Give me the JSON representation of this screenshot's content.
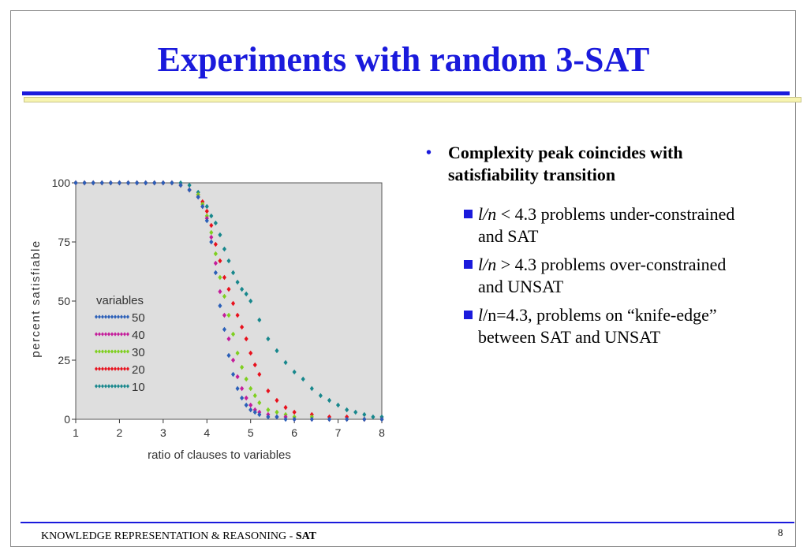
{
  "slide": {
    "title": "Experiments with random 3-SAT",
    "bullet_main": "Complexity peak coincides with satisfiability transition",
    "sub_bullets": [
      {
        "italic": "l/n",
        "rest": " < 4.3 problems under-constrained and SAT"
      },
      {
        "italic": "l/n",
        "rest": " > 4.3 problems over-constrained and UNSAT"
      },
      {
        "italic": "l",
        "rest": "/n=4.3, problems on “knife-edge” between SAT and UNSAT"
      }
    ],
    "footer_text": "KNOWLEDGE REPRESENTATION & REASONING - ",
    "footer_bold": "SAT",
    "page_number": "8"
  },
  "chart_data": {
    "type": "scatter",
    "xlabel": "ratio of clauses to variables",
    "ylabel": "percent satisfiable",
    "xlim": [
      1,
      8
    ],
    "ylim": [
      0,
      100
    ],
    "x_ticks": [
      "1",
      "2",
      "3",
      "4",
      "5",
      "6",
      "7",
      "8"
    ],
    "y_ticks": [
      "0",
      "25",
      "50",
      "75",
      "100"
    ],
    "legend_title": "variables",
    "legend_position": "left-center",
    "background": "#dedede",
    "series": [
      {
        "name": "50",
        "color": "#2a5fb8",
        "x": [
          1.0,
          1.2,
          1.4,
          1.6,
          1.8,
          2.0,
          2.2,
          2.4,
          2.6,
          2.8,
          3.0,
          3.2,
          3.4,
          3.6,
          3.8,
          3.9,
          4.0,
          4.1,
          4.2,
          4.3,
          4.4,
          4.5,
          4.6,
          4.7,
          4.8,
          4.9,
          5.0,
          5.1,
          5.2,
          5.4,
          5.6,
          5.8,
          6.0,
          6.4,
          6.8,
          7.2,
          7.6,
          8.0
        ],
        "y": [
          100,
          100,
          100,
          100,
          100,
          100,
          100,
          100,
          100,
          100,
          100,
          100,
          99,
          97,
          94,
          90,
          84,
          75,
          62,
          48,
          38,
          27,
          19,
          13,
          9,
          6,
          4,
          3,
          2,
          1,
          1,
          0,
          0,
          0,
          0,
          0,
          0,
          0
        ]
      },
      {
        "name": "40",
        "color": "#c41c9a",
        "x": [
          1.0,
          1.2,
          1.4,
          1.6,
          1.8,
          2.0,
          2.2,
          2.4,
          2.6,
          2.8,
          3.0,
          3.2,
          3.4,
          3.6,
          3.8,
          3.9,
          4.0,
          4.1,
          4.2,
          4.3,
          4.4,
          4.5,
          4.6,
          4.7,
          4.8,
          4.9,
          5.0,
          5.1,
          5.2,
          5.4,
          5.6,
          5.8,
          6.0,
          6.4,
          6.8,
          7.2,
          7.6,
          8.0
        ],
        "y": [
          100,
          100,
          100,
          100,
          100,
          100,
          100,
          100,
          100,
          100,
          100,
          100,
          99,
          97,
          94,
          90,
          85,
          77,
          66,
          54,
          44,
          34,
          25,
          18,
          13,
          9,
          6,
          4,
          3,
          2,
          1,
          1,
          0,
          0,
          0,
          0,
          0,
          0
        ]
      },
      {
        "name": "30",
        "color": "#7ecf1f",
        "x": [
          1.0,
          1.2,
          1.4,
          1.6,
          1.8,
          2.0,
          2.2,
          2.4,
          2.6,
          2.8,
          3.0,
          3.2,
          3.4,
          3.6,
          3.8,
          3.9,
          4.0,
          4.1,
          4.2,
          4.3,
          4.4,
          4.5,
          4.6,
          4.7,
          4.8,
          4.9,
          5.0,
          5.1,
          5.2,
          5.4,
          5.6,
          5.8,
          6.0,
          6.4,
          6.8,
          7.2,
          7.6,
          8.0
        ],
        "y": [
          100,
          100,
          100,
          100,
          100,
          100,
          100,
          100,
          100,
          100,
          100,
          100,
          99,
          97,
          95,
          91,
          86,
          79,
          70,
          60,
          52,
          44,
          36,
          28,
          22,
          17,
          13,
          10,
          7,
          4,
          3,
          2,
          1,
          1,
          0,
          0,
          0,
          0
        ]
      },
      {
        "name": "20",
        "color": "#e8101c",
        "x": [
          1.0,
          1.2,
          1.4,
          1.6,
          1.8,
          2.0,
          2.2,
          2.4,
          2.6,
          2.8,
          3.0,
          3.2,
          3.4,
          3.6,
          3.8,
          3.9,
          4.0,
          4.1,
          4.2,
          4.3,
          4.4,
          4.5,
          4.6,
          4.7,
          4.8,
          4.9,
          5.0,
          5.1,
          5.2,
          5.4,
          5.6,
          5.8,
          6.0,
          6.4,
          6.8,
          7.2,
          7.6,
          8.0
        ],
        "y": [
          100,
          100,
          100,
          100,
          100,
          100,
          100,
          100,
          100,
          100,
          100,
          100,
          99,
          97,
          95,
          92,
          88,
          82,
          74,
          67,
          60,
          55,
          49,
          44,
          39,
          34,
          28,
          23,
          19,
          12,
          8,
          5,
          3,
          2,
          1,
          1,
          0,
          0
        ]
      },
      {
        "name": "10",
        "color": "#17878c",
        "x": [
          1.0,
          1.2,
          1.4,
          1.6,
          1.8,
          2.0,
          2.2,
          2.4,
          2.6,
          2.8,
          3.0,
          3.2,
          3.4,
          3.6,
          3.8,
          4.0,
          4.1,
          4.2,
          4.3,
          4.4,
          4.5,
          4.6,
          4.7,
          4.8,
          4.9,
          5.0,
          5.2,
          5.4,
          5.6,
          5.8,
          6.0,
          6.2,
          6.4,
          6.6,
          6.8,
          7.0,
          7.2,
          7.4,
          7.6,
          7.8,
          8.0
        ],
        "y": [
          100,
          100,
          100,
          100,
          100,
          100,
          100,
          100,
          100,
          100,
          100,
          100,
          100,
          99,
          96,
          90,
          86,
          83,
          78,
          72,
          67,
          62,
          58,
          55,
          53,
          50,
          42,
          34,
          29,
          24,
          20,
          17,
          13,
          10,
          8,
          6,
          4,
          3,
          2,
          1,
          1
        ]
      }
    ]
  }
}
